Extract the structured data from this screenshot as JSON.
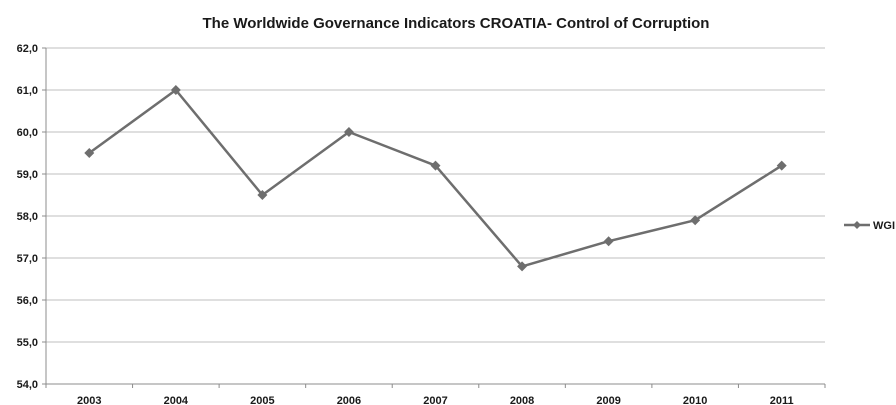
{
  "chart_data": {
    "type": "line",
    "title": "The Worldwide Governance Indicators CROATIA- Control of Corruption",
    "xlabel": "",
    "ylabel": "",
    "categories": [
      "2003",
      "2004",
      "2005",
      "2006",
      "2007",
      "2008",
      "2009",
      "2010",
      "2011"
    ],
    "series": [
      {
        "name": "WGI",
        "values": [
          59.5,
          61.0,
          58.5,
          60.0,
          59.2,
          56.8,
          57.4,
          57.9,
          59.2
        ]
      }
    ],
    "ylim": [
      54.0,
      62.0
    ],
    "yticks": [
      "54,0",
      "55,0",
      "56,0",
      "57,0",
      "58,0",
      "59,0",
      "60,0",
      "61,0",
      "62,0"
    ],
    "grid": true,
    "legend_position": "right",
    "colors": {
      "line": "#6e6e6e",
      "marker": "#6e6e6e",
      "grid": "#bfbfbf",
      "axis": "#8c8c8c"
    }
  }
}
